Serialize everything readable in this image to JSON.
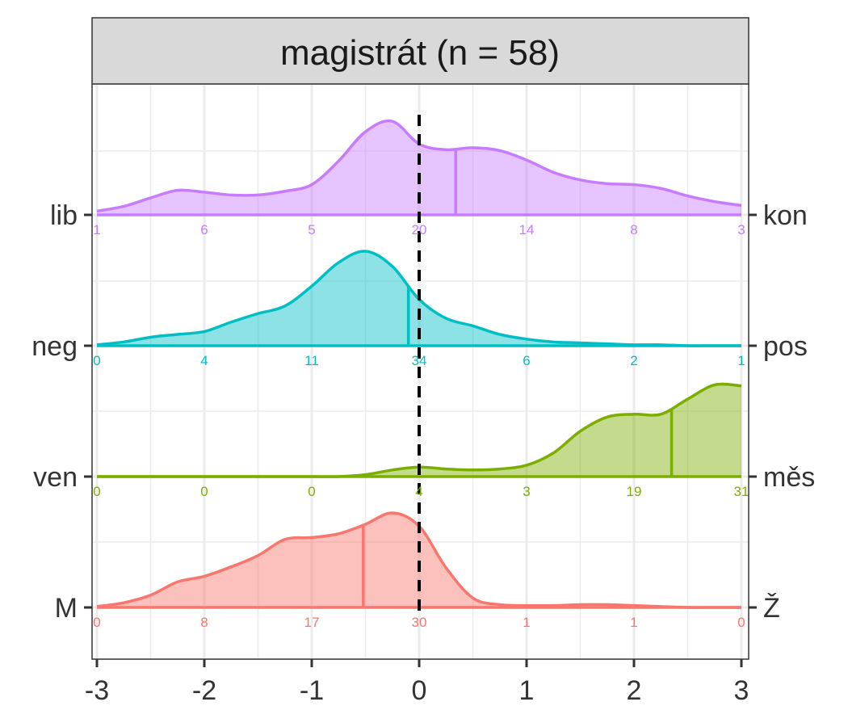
{
  "chart_data": {
    "type": "ridgeline",
    "title": "magistrát (n = 58)",
    "xlim": [
      -3,
      3
    ],
    "x_ticks": [
      "-3",
      "-2",
      "-1",
      "0",
      "1",
      "2",
      "3"
    ],
    "reference_line_x": 0,
    "series": [
      {
        "left_label": "M",
        "right_label": "Ž",
        "color": "#F8766D",
        "mean": -0.52,
        "counts": [
          "0",
          "8",
          "17",
          "30",
          "1",
          "1",
          "0"
        ],
        "density": [
          0.01,
          0.05,
          0.13,
          0.27,
          0.33,
          0.43,
          0.55,
          0.72,
          0.74,
          0.78,
          0.88,
          1.0,
          0.86,
          0.42,
          0.1,
          0.03,
          0.02,
          0.02,
          0.03,
          0.03,
          0.02,
          0.01,
          0.0,
          0.0,
          0.0
        ]
      },
      {
        "left_label": "ven",
        "right_label": "měs",
        "color": "#7CAE00",
        "mean": 2.35,
        "counts": [
          "0",
          "0",
          "0",
          "4",
          "3",
          "19",
          "31"
        ],
        "density": [
          0.0,
          0.0,
          0.0,
          0.0,
          0.0,
          0.0,
          0.0,
          0.0,
          0.0,
          0.0,
          0.02,
          0.07,
          0.1,
          0.08,
          0.07,
          0.08,
          0.12,
          0.25,
          0.48,
          0.63,
          0.66,
          0.66,
          0.82,
          0.97,
          0.96
        ]
      },
      {
        "left_label": "neg",
        "right_label": "pos",
        "color": "#00BFC4",
        "mean": -0.1,
        "counts": [
          "0",
          "4",
          "11",
          "34",
          "6",
          "2",
          "1"
        ],
        "density": [
          0.01,
          0.04,
          0.09,
          0.12,
          0.15,
          0.25,
          0.34,
          0.42,
          0.63,
          0.88,
          1.0,
          0.84,
          0.49,
          0.29,
          0.21,
          0.12,
          0.07,
          0.04,
          0.03,
          0.02,
          0.01,
          0.01,
          0.0,
          0.0,
          0.0
        ]
      },
      {
        "left_label": "lib",
        "right_label": "kon",
        "color": "#C77CFF",
        "mean": 0.34,
        "counts": [
          "1",
          "6",
          "5",
          "20",
          "14",
          "8",
          "3"
        ],
        "density": [
          0.04,
          0.09,
          0.18,
          0.26,
          0.24,
          0.21,
          0.21,
          0.25,
          0.32,
          0.57,
          0.88,
          0.99,
          0.75,
          0.69,
          0.71,
          0.68,
          0.58,
          0.45,
          0.37,
          0.33,
          0.32,
          0.28,
          0.2,
          0.14,
          0.1
        ]
      }
    ]
  }
}
